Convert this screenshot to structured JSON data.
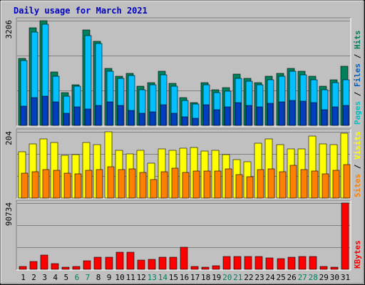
{
  "chart_data": {
    "type": "bar",
    "title": "Daily usage for March 2021",
    "categories": [
      "1",
      "2",
      "3",
      "4",
      "5",
      "6",
      "7",
      "8",
      "9",
      "10",
      "11",
      "12",
      "13",
      "14",
      "15",
      "16",
      "17",
      "18",
      "19",
      "20",
      "21",
      "22",
      "23",
      "24",
      "25",
      "26",
      "27",
      "28",
      "29",
      "30",
      "31"
    ],
    "weekend_days": [
      "6",
      "7",
      "13",
      "14",
      "20",
      "21",
      "27",
      "28"
    ],
    "panels": [
      {
        "name": "top",
        "ymax_label": "3206",
        "ylim": [
          0,
          3206
        ],
        "side_label": [
          {
            "text": "Pages",
            "color": "#00c0c0"
          },
          {
            "text": " / ",
            "color": "#000000"
          },
          {
            "text": "Files",
            "color": "#0060c0"
          },
          {
            "text": " / ",
            "color": "#000000"
          },
          {
            "text": "Hits",
            "color": "#00805c"
          }
        ],
        "series": [
          {
            "name": "Hits",
            "color": "#00805c",
            "values": [
              2050,
              2980,
              3206,
              1640,
              1000,
              1250,
              2920,
              2580,
              1750,
              1500,
              1600,
              1200,
              1300,
              1650,
              1280,
              850,
              700,
              1300,
              1100,
              1150,
              1560,
              1450,
              1300,
              1500,
              1600,
              1750,
              1650,
              1500,
              1200,
              1400,
              1800
            ]
          },
          {
            "name": "Files",
            "color": "#00c0ff",
            "values": [
              1980,
              2850,
              3100,
              1500,
              900,
              1200,
              2750,
              2500,
              1650,
              1450,
              1520,
              1100,
              1250,
              1550,
              1200,
              760,
              650,
              1250,
              1000,
              1050,
              1450,
              1350,
              1250,
              1400,
              1500,
              1650,
              1550,
              1400,
              1100,
              1300,
              1400
            ]
          },
          {
            "name": "Pages",
            "color": "#0040c0",
            "values": [
              580,
              860,
              900,
              720,
              380,
              560,
              500,
              600,
              720,
              600,
              460,
              380,
              420,
              640,
              380,
              260,
              220,
              640,
              480,
              560,
              700,
              600,
              560,
              680,
              720,
              760,
              740,
              700,
              480,
              560,
              600
            ]
          }
        ]
      },
      {
        "name": "middle",
        "ymax_label": "204",
        "ylim": [
          0,
          204
        ],
        "side_label": [
          {
            "text": "Sites",
            "color": "#ff8000"
          },
          {
            "text": " / ",
            "color": "#000000"
          },
          {
            "text": "Visits",
            "color": "#ffff00"
          }
        ],
        "series": [
          {
            "name": "Visits",
            "color": "#ffff00",
            "values": [
              142,
              167,
              181,
              171,
              132,
              133,
              172,
              164,
              204,
              148,
              136,
              147,
              108,
              152,
              146,
              153,
              155,
              145,
              148,
              134,
              119,
              111,
              169,
              183,
              164,
              152,
              151,
              190,
              166,
              164,
              199
            ]
          },
          {
            "name": "Sites",
            "color": "#ff8000",
            "values": [
              76,
              82,
              88,
              85,
              77,
              75,
              85,
              87,
              96,
              87,
              90,
              80,
              57,
              82,
              92,
              79,
              84,
              84,
              83,
              90,
              72,
              65,
              87,
              90,
              81,
              100,
              87,
              84,
              74,
              86,
              103
            ]
          }
        ]
      },
      {
        "name": "bottom",
        "ymax_label": "90734",
        "ylim": [
          0,
          90734
        ],
        "side_label": [
          {
            "text": "KBytes",
            "color": "#ff0000"
          }
        ],
        "series": [
          {
            "name": "KBytes",
            "color": "#ff0000",
            "values": [
              4000,
              11000,
              20000,
              8000,
              3300,
              3500,
              12000,
              16500,
              16500,
              23000,
              23000,
              13000,
              14000,
              17000,
              17000,
              30000,
              4000,
              3300,
              5000,
              17500,
              17500,
              17500,
              17500,
              15500,
              14500,
              17000,
              18000,
              17500,
              4000,
              3300,
              90734
            ]
          }
        ]
      }
    ],
    "legend": "right-side vertical labels",
    "grid": true
  }
}
